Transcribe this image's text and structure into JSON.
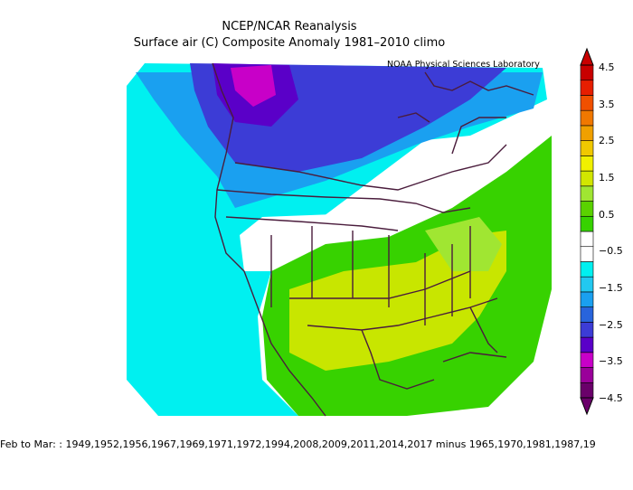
{
  "title": "NCEP/NCAR Reanalysis",
  "subtitle": "Surface air (C) Composite Anomaly 1981–2010 climo",
  "credit": "NOAA Physical Sciences Laboratory",
  "footer": "Feb to Mar: : 1949,1952,1956,1967,1969,1971,1972,1994,2008,2009,2011,2014,2017 minus 1965,1970,1981,1987,19",
  "colorbar": {
    "labels": [
      "4.5",
      "3.5",
      "2.5",
      "1.5",
      "0.5",
      "−0.5",
      "−1.5",
      "−2.5",
      "−3.5",
      "−4.5"
    ],
    "colors": [
      "#6a006a",
      "#9a009a",
      "#c800c8",
      "#5a00c8",
      "#3c3cd6",
      "#2864dc",
      "#1aa0f0",
      "#22c8f0",
      "#00f0f0",
      "#ffffff",
      "#ffffff",
      "#37d200",
      "#5ad200",
      "#a0e632",
      "#d2e600",
      "#f0f000",
      "#f0c800",
      "#f0a000",
      "#f07800",
      "#f05000",
      "#e61e00",
      "#c80000"
    ]
  },
  "map_fields": {
    "cold_cyan": "#00f0f0",
    "blue_mid": "#22c8f0",
    "blue": "#1aa0f0",
    "deep_blue": "#3c3cd6",
    "purple": "#5a00c8",
    "magenta": "#c800c8",
    "green": "#37d200",
    "lime": "#a0e632",
    "yellow_green": "#c8e600"
  }
}
